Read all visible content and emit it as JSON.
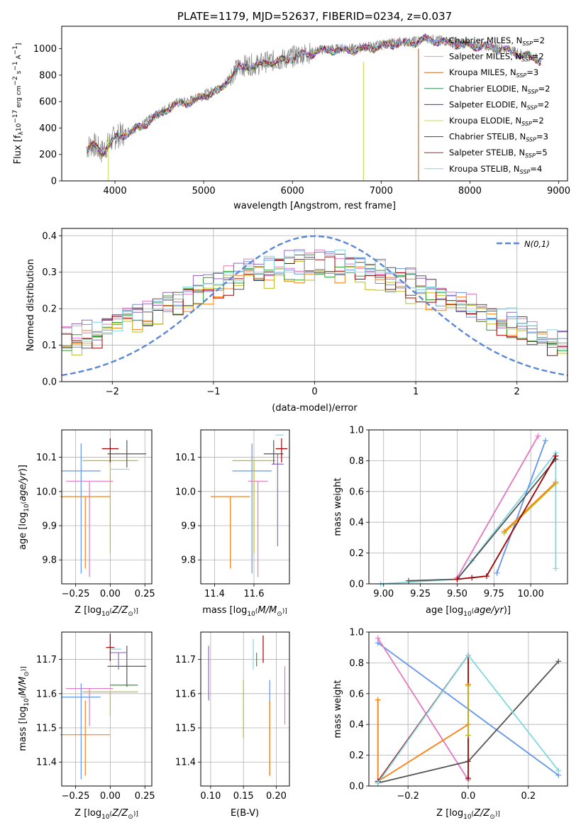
{
  "chart_data": [
    {
      "id": "spectrum",
      "type": "line",
      "title": "PLATE=1179, MJD=52637, FIBERID=0234, z=0.037",
      "xlabel": "wavelength [Angstrom, rest frame]",
      "ylabel": "Flux [f_λ10^−17 erg cm^−2 s^−1 A^−1]",
      "xlim": [
        3400,
        9100
      ],
      "ylim": [
        0,
        1170
      ],
      "xticks": [
        4000,
        5000,
        6000,
        7000,
        8000,
        9000
      ],
      "yticks": [
        0,
        200,
        400,
        600,
        800,
        1000
      ],
      "grid": false,
      "legend_position": "top-right",
      "observed_spectrum": {
        "color": "#808080",
        "x": [
          3680,
          3750,
          3850,
          3950,
          4000,
          4100,
          4200,
          4300,
          4400,
          4500,
          4600,
          4700,
          4800,
          4900,
          5000,
          5100,
          5200,
          5300,
          5400,
          5500,
          5600,
          5700,
          5800,
          5900,
          6000,
          6100,
          6200,
          6300,
          6400,
          6500,
          6600,
          6700,
          6800,
          6900,
          7000,
          7100,
          7200,
          7300,
          7400,
          7500,
          7600,
          7700,
          7800,
          7900,
          8000,
          8100,
          8200,
          8300,
          8400,
          8500,
          8600,
          8700,
          8800
        ],
        "y": [
          250,
          280,
          220,
          300,
          330,
          360,
          390,
          420,
          470,
          510,
          560,
          590,
          600,
          620,
          650,
          680,
          700,
          800,
          860,
          880,
          880,
          900,
          910,
          920,
          940,
          960,
          970,
          990,
          1000,
          1000,
          1000,
          1000,
          1010,
          1020,
          1030,
          1040,
          1050,
          1050,
          1060,
          1080,
          1070,
          1060,
          1050,
          1040,
          1030,
          1030,
          1020,
          1010,
          1000,
          980,
          960,
          940,
          920
        ]
      },
      "series": [
        {
          "name": "Chabrier MILES, N_SSP=2",
          "color": "#6495ed"
        },
        {
          "name": "Salpeter MILES, N_SSP=2",
          "color": "#ee82ee"
        },
        {
          "name": "Kroupa MILES, N_SSP=3",
          "color": "#d2691e"
        },
        {
          "name": "Chabrier ELODIE, N_SSP=2",
          "color": "#2e8b57"
        },
        {
          "name": "Salpeter ELODIE, N_SSP=2",
          "color": "#9400d3"
        },
        {
          "name": "Kroupa ELODIE, N_SSP=2",
          "color": "#c8dc50"
        },
        {
          "name": "Chabrier STELIB, N_SSP=3",
          "color": "#404040"
        },
        {
          "name": "Salpeter STELIB, N_SSP=5",
          "color": "#b22222"
        },
        {
          "name": "Kroupa STELIB, N_SSP=4",
          "color": "#87ceeb"
        }
      ]
    },
    {
      "id": "residuals",
      "type": "line",
      "xlabel": "(data-model)/error",
      "ylabel": "Normed distribution",
      "xlim": [
        -2.5,
        2.5
      ],
      "ylim": [
        0,
        0.42
      ],
      "xticks": [
        -2,
        -1,
        0,
        1,
        2
      ],
      "yticks": [
        0.0,
        0.1,
        0.2,
        0.3,
        0.4
      ],
      "grid": true,
      "legend_position": "top-right",
      "normal": {
        "name": "N(0,1)",
        "color": "#5b87d6",
        "style": "dashed"
      },
      "bin_width": 0.1,
      "histograms": [
        {
          "color": "#6495ed",
          "offset": 0.01
        },
        {
          "color": "#e377c2",
          "offset": 0.02
        },
        {
          "color": "#ff7f0e",
          "offset": -0.01
        },
        {
          "color": "#2ca02c",
          "offset": 0.0
        },
        {
          "color": "#9467bd",
          "offset": 0.015
        },
        {
          "color": "#bcbd22",
          "offset": -0.015
        },
        {
          "color": "#555555",
          "offset": 0.005
        },
        {
          "color": "#a00000",
          "offset": -0.005
        },
        {
          "color": "#7fd7e0",
          "offset": 0.02
        }
      ]
    },
    {
      "id": "age-vs-Z",
      "type": "scatter",
      "xlabel": "Z [log10(Z/Z☉)]",
      "ylabel": "age [log10(age/yr)]",
      "xlim": [
        -0.35,
        0.3
      ],
      "ylim": [
        9.73,
        10.18
      ],
      "xticks": [
        -0.25,
        0.0,
        0.25
      ],
      "yticks": [
        9.8,
        9.9,
        10.0,
        10.1
      ],
      "grid": true,
      "points": [
        {
          "color": "#e377c2",
          "x": -0.15,
          "xerr": 0.17,
          "y": 10.03,
          "yerr_low": 0.28,
          "yerr_high": 0.0
        },
        {
          "color": "#6495ed",
          "x": -0.21,
          "xerr": 0.14,
          "y": 10.06,
          "yerr_low": 0.3,
          "yerr_high": 0.08
        },
        {
          "color": "#ff7f0e",
          "x": -0.18,
          "xerr": 0.18,
          "y": 9.985,
          "yerr_low": 0.21,
          "yerr_high": 0.0
        },
        {
          "color": "#bcbd22",
          "x": 0.0,
          "xerr": 0.2,
          "y": 10.09,
          "yerr_low": 0.27,
          "yerr_high": 0.0
        },
        {
          "color": "#555555",
          "x": 0.12,
          "xerr": 0.14,
          "y": 10.11,
          "yerr_low": 0.04,
          "yerr_high": 0.04
        },
        {
          "color": "#a00000",
          "x": 0.0,
          "xerr": 0.06,
          "y": 10.125,
          "yerr_low": 0.04,
          "yerr_high": 0.03
        },
        {
          "color": "#7fd7e0",
          "x": 0.07,
          "xerr": 0.07,
          "y": 10.065,
          "yerr_low": 0.0,
          "yerr_high": 0.0
        }
      ]
    },
    {
      "id": "age-vs-mass",
      "type": "scatter",
      "xlabel": "mass [log10(M/M☉)]",
      "xlim": [
        11.33,
        11.78
      ],
      "ylim": [
        9.73,
        10.18
      ],
      "xticks": [
        11.4,
        11.6
      ],
      "yticks": [
        9.8,
        9.9,
        10.0,
        10.1
      ],
      "grid": true,
      "points": [
        {
          "color": "#6495ed",
          "x": 11.59,
          "xerr": 0.1,
          "y": 10.06,
          "yerr_low": 0.3,
          "yerr_high": 0.08
        },
        {
          "color": "#ff7f0e",
          "x": 11.48,
          "xerr": 0.1,
          "y": 9.985,
          "yerr_low": 0.21,
          "yerr_high": 0.0
        },
        {
          "color": "#e377c2",
          "x": 11.62,
          "xerr": 0.05,
          "y": 10.03,
          "yerr_low": 0.28,
          "yerr_high": 0.0
        },
        {
          "color": "#bcbd22",
          "x": 11.6,
          "xerr": 0.11,
          "y": 10.09,
          "yerr_low": 0.27,
          "yerr_high": 0.0
        },
        {
          "color": "#9467bd",
          "x": 11.72,
          "xerr": 0.03,
          "y": 10.08,
          "yerr_low": 0.24,
          "yerr_high": 0.03
        },
        {
          "color": "#555555",
          "x": 11.7,
          "xerr": 0.05,
          "y": 10.11,
          "yerr_low": 0.03,
          "yerr_high": 0.04
        },
        {
          "color": "#a00000",
          "x": 11.74,
          "xerr": 0.03,
          "y": 10.125,
          "yerr_low": 0.04,
          "yerr_high": 0.03
        },
        {
          "color": "#7fd7e0",
          "x": 11.73,
          "xerr": 0.02,
          "y": 10.165,
          "yerr_low": 0.0,
          "yerr_high": 0.0
        }
      ]
    },
    {
      "id": "weight-vs-age",
      "type": "line",
      "xlabel": "age [log10(age/yr)]",
      "ylabel": "mass weight",
      "xlim": [
        8.9,
        10.25
      ],
      "ylim": [
        0,
        1
      ],
      "xticks": [
        9.0,
        9.25,
        9.5,
        9.75,
        10.0
      ],
      "yticks": [
        0.0,
        0.2,
        0.4,
        0.6,
        0.8,
        1.0
      ],
      "grid": true,
      "series": [
        {
          "color": "#7fd7e0",
          "x": [
            8.98,
            9.5,
            9.6,
            10.17,
            10.17
          ],
          "y": [
            0.0,
            0.03,
            0.15,
            0.85,
            0.1
          ]
        },
        {
          "color": "#6495ed",
          "x": [
            9.77,
            10.1
          ],
          "y": [
            0.07,
            0.93
          ]
        },
        {
          "color": "#e377c2",
          "x": [
            9.5,
            10.05
          ],
          "y": [
            0.04,
            0.96
          ]
        },
        {
          "color": "#ff7f0e",
          "x": [
            9.82,
            10.17
          ],
          "y": [
            0.34,
            0.66
          ]
        },
        {
          "color": "#bcbd22",
          "x": [
            9.82,
            10.17
          ],
          "y": [
            0.33,
            0.65
          ]
        },
        {
          "color": "#555555",
          "x": [
            9.17,
            9.5,
            10.17
          ],
          "y": [
            0.02,
            0.03,
            0.81
          ]
        },
        {
          "color": "#a00000",
          "x": [
            9.5,
            9.6,
            9.7,
            10.17
          ],
          "y": [
            0.03,
            0.04,
            0.05,
            0.83
          ]
        }
      ]
    },
    {
      "id": "mass-vs-Z",
      "type": "scatter",
      "xlabel": "Z [log10(Z/Z☉)]",
      "ylabel": "mass [log10(M/M☉)]",
      "xlim": [
        -0.35,
        0.3
      ],
      "ylim": [
        11.33,
        11.78
      ],
      "xticks": [
        -0.25,
        0.0,
        0.25
      ],
      "yticks": [
        11.4,
        11.5,
        11.6,
        11.7
      ],
      "grid": true,
      "points": [
        {
          "color": "#e377c2",
          "x": -0.15,
          "xerr": 0.17,
          "y": 11.615,
          "yerr_low": 0.11,
          "yerr_high": 0.0
        },
        {
          "color": "#6495ed",
          "x": -0.21,
          "xerr": 0.14,
          "y": 11.59,
          "yerr_low": 0.24,
          "yerr_high": 0.04
        },
        {
          "color": "#ff7f0e",
          "x": -0.18,
          "xerr": 0.18,
          "y": 11.48,
          "yerr_low": 0.12,
          "yerr_high": 0.1
        },
        {
          "color": "#bcbd22",
          "x": 0.0,
          "xerr": 0.2,
          "y": 11.605,
          "yerr_low": 0.07,
          "yerr_high": 0.0
        },
        {
          "color": "#2ca02c",
          "x": 0.1,
          "xerr": 0.1,
          "y": 11.625,
          "yerr_low": 0.0,
          "yerr_high": 0.0
        },
        {
          "color": "#555555",
          "x": 0.12,
          "xerr": 0.14,
          "y": 11.68,
          "yerr_low": 0.06,
          "yerr_high": 0.06
        },
        {
          "color": "#9467bd",
          "x": 0.06,
          "xerr": 0.06,
          "y": 11.72,
          "yerr_low": 0.05,
          "yerr_high": 0.0
        },
        {
          "color": "#a00000",
          "x": 0.0,
          "xerr": 0.03,
          "y": 11.735,
          "yerr_low": 0.04,
          "yerr_high": 0.04
        },
        {
          "color": "#7fd7e0",
          "x": 0.04,
          "xerr": 0.04,
          "y": 11.73,
          "yerr_low": 0.0,
          "yerr_high": 0.0
        }
      ]
    },
    {
      "id": "mass-vs-ebv",
      "type": "scatter",
      "xlabel": "E(B-V)",
      "xlim": [
        0.085,
        0.22
      ],
      "ylim": [
        11.33,
        11.78
      ],
      "xticks": [
        0.1,
        0.15,
        0.2
      ],
      "yticks": [
        11.4,
        11.5,
        11.6,
        11.7
      ],
      "grid": true,
      "points": [
        {
          "color": "#9467bd",
          "x": 0.097,
          "y_low": 11.58,
          "y_high": 11.74
        },
        {
          "color": "#bcbd22",
          "x": 0.15,
          "y_low": 11.47,
          "y_high": 11.64
        },
        {
          "color": "#7fd7e0",
          "x": 0.165,
          "y_low": 11.67,
          "y_high": 11.76
        },
        {
          "color": "#2ca02c",
          "x": 0.17,
          "y_low": 11.68,
          "y_high": 11.72
        },
        {
          "color": "#a00000",
          "x": 0.18,
          "y_low": 11.69,
          "y_high": 11.77
        },
        {
          "color": "#6495ed",
          "x": 0.19,
          "y_low": 11.36,
          "y_high": 11.64
        },
        {
          "color": "#ff7f0e",
          "x": 0.19,
          "y_low": 11.36,
          "y_high": 11.58
        },
        {
          "color": "#e377c2",
          "x": 0.213,
          "y_low": 11.51,
          "y_high": 11.68
        }
      ]
    },
    {
      "id": "weight-vs-Z",
      "type": "line",
      "xlabel": "Z [log10(Z/Z☉)]",
      "ylabel": "mass weight",
      "xlim": [
        -0.33,
        0.33
      ],
      "ylim": [
        0,
        1
      ],
      "xticks": [
        -0.2,
        0.0,
        0.2
      ],
      "yticks": [
        0.0,
        0.2,
        0.4,
        0.6,
        0.8,
        1.0
      ],
      "grid": true,
      "series": [
        {
          "color": "#6495ed",
          "x": [
            -0.3,
            0.3
          ],
          "y": [
            0.93,
            0.07
          ]
        },
        {
          "color": "#e377c2",
          "x": [
            -0.3,
            0.0
          ],
          "y": [
            0.96,
            0.04
          ]
        },
        {
          "color": "#ff7f0e",
          "x": [
            -0.3,
            -0.3,
            0.0,
            0.0
          ],
          "y": [
            0.56,
            0.03,
            0.4,
            0.66
          ]
        },
        {
          "color": "#555555",
          "x": [
            -0.3,
            0.0,
            0.3
          ],
          "y": [
            0.02,
            0.16,
            0.81
          ]
        },
        {
          "color": "#a00000",
          "x": [
            -0.3,
            0.0,
            0.0
          ],
          "y": [
            0.03,
            0.85,
            0.05
          ]
        },
        {
          "color": "#7fd7e0",
          "x": [
            -0.3,
            0.0,
            0.3
          ],
          "y": [
            0.02,
            0.85,
            0.1
          ]
        },
        {
          "color": "#bcbd22",
          "x": [
            0.0,
            0.0
          ],
          "y": [
            0.33,
            0.65
          ]
        }
      ]
    }
  ]
}
